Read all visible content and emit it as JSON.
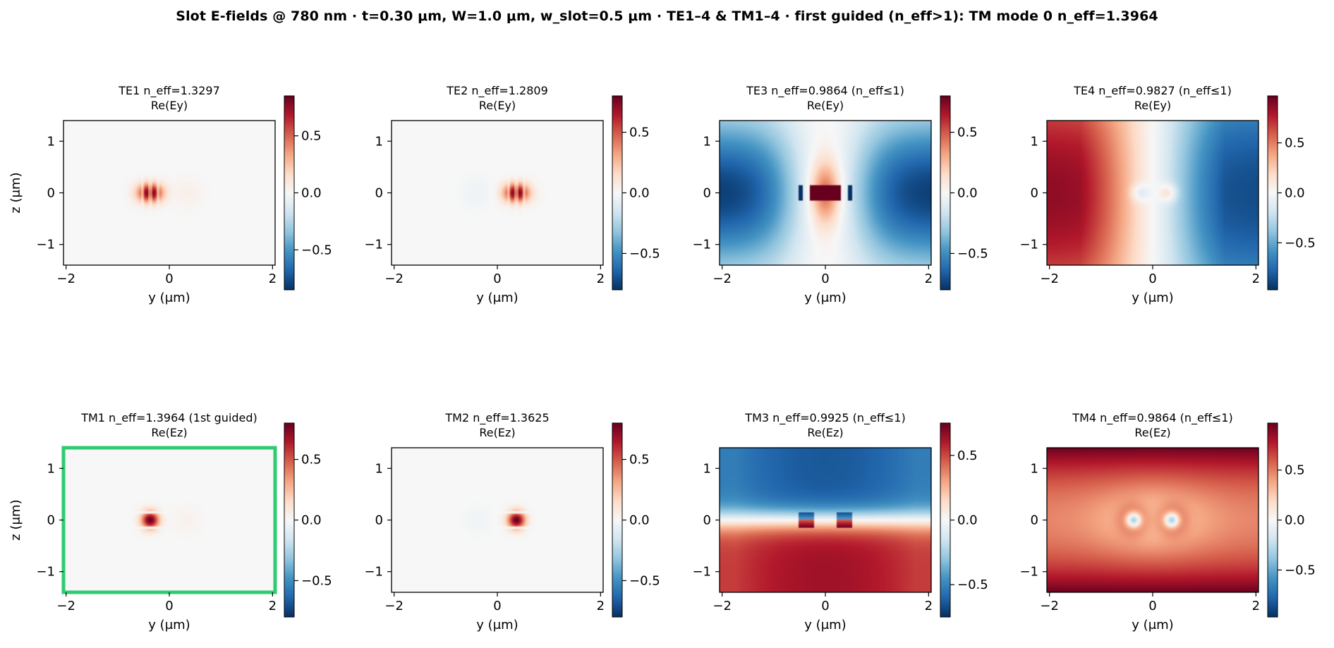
{
  "suptitle": "Slot E-fields @ 780 nm · t=0.30 μm, W=1.0 μm, w_slot=0.5 μm · TE1–4 & TM1–4  ·  first guided (n_eff>1): TM mode 0 n_eff=1.3964",
  "colors": {
    "highlight": "#2ecc71",
    "cmap": "RdBu_r",
    "cmap_stops": [
      "#053061",
      "#2166ac",
      "#4393c3",
      "#92c5de",
      "#d1e5f0",
      "#f7f7f7",
      "#fddbc7",
      "#f4a582",
      "#d6604d",
      "#b2182b",
      "#67001f"
    ]
  },
  "chart_data": [
    {
      "type": "heatmap",
      "mode": "TE1",
      "title_line1": "TE1  n_eff=1.3297",
      "title_line2": "Re(Ey)",
      "n_eff": 1.3297,
      "component": "Ey",
      "xlabel": "y (μm)",
      "ylabel": "z (μm)",
      "xlim": [
        -2.05,
        2.05
      ],
      "ylim": [
        -1.4,
        1.4
      ],
      "xticks": [
        "−2",
        "0",
        "2"
      ],
      "yticks": [
        "1",
        "0",
        "−1"
      ],
      "clim": [
        -0.85,
        0.85
      ],
      "cbar_ticks": [
        "0.5",
        "0.0",
        "−0.5"
      ],
      "cbar_values": [
        0.5,
        0,
        -0.5
      ],
      "highlight": false,
      "pattern": "te-left"
    },
    {
      "type": "heatmap",
      "mode": "TE2",
      "title_line1": "TE2  n_eff=1.2809",
      "title_line2": "Re(Ey)",
      "n_eff": 1.2809,
      "component": "Ey",
      "xlabel": "y (μm)",
      "ylabel": "",
      "xlim": [
        -2.05,
        2.05
      ],
      "ylim": [
        -1.4,
        1.4
      ],
      "xticks": [
        "−2",
        "0",
        "2"
      ],
      "yticks": [
        "1",
        "0",
        "−1"
      ],
      "clim": [
        -0.8,
        0.8
      ],
      "cbar_ticks": [
        "0.5",
        "0.0",
        "−0.5"
      ],
      "cbar_values": [
        0.5,
        0,
        -0.5
      ],
      "highlight": false,
      "pattern": "te-right"
    },
    {
      "type": "heatmap",
      "mode": "TE3",
      "title_line1": "TE3  n_eff=0.9864  (n_eff≤1)",
      "title_line2": "Re(Ey)",
      "n_eff": 0.9864,
      "component": "Ey",
      "xlabel": "y (μm)",
      "ylabel": "",
      "xlim": [
        -2.05,
        2.05
      ],
      "ylim": [
        -1.4,
        1.4
      ],
      "xticks": [
        "−2",
        "0",
        "2"
      ],
      "yticks": [
        "1",
        "0",
        "−1"
      ],
      "clim": [
        -0.8,
        0.8
      ],
      "cbar_ticks": [
        "0.5",
        "0.0",
        "−0.5"
      ],
      "cbar_values": [
        0.5,
        0,
        -0.5
      ],
      "highlight": false,
      "pattern": "te3"
    },
    {
      "type": "heatmap",
      "mode": "TE4",
      "title_line1": "TE4  n_eff=0.9827  (n_eff≤1)",
      "title_line2": "Re(Ey)",
      "n_eff": 0.9827,
      "component": "Ey",
      "xlabel": "y (μm)",
      "ylabel": "",
      "xlim": [
        -2.05,
        2.05
      ],
      "ylim": [
        -1.4,
        1.4
      ],
      "xticks": [
        "−2",
        "0",
        "2"
      ],
      "yticks": [
        "1",
        "0",
        "−1"
      ],
      "clim": [
        -0.97,
        0.97
      ],
      "cbar_ticks": [
        "0.5",
        "0.0",
        "−0.5"
      ],
      "cbar_values": [
        0.5,
        0,
        -0.5
      ],
      "highlight": false,
      "pattern": "te4"
    },
    {
      "type": "heatmap",
      "mode": "TM1",
      "title_line1": "TM1  n_eff=1.3964  (1st guided)",
      "title_line2": "Re(Ez)",
      "n_eff": 1.3964,
      "component": "Ez",
      "xlabel": "y (μm)",
      "ylabel": "z (μm)",
      "xlim": [
        -2.05,
        2.05
      ],
      "ylim": [
        -1.4,
        1.4
      ],
      "xticks": [
        "−2",
        "0",
        "2"
      ],
      "yticks": [
        "1",
        "0",
        "−1"
      ],
      "clim": [
        -0.8,
        0.8
      ],
      "cbar_ticks": [
        "0.5",
        "0.0",
        "−0.5"
      ],
      "cbar_values": [
        0.5,
        0,
        -0.5
      ],
      "highlight": true,
      "pattern": "tm-left"
    },
    {
      "type": "heatmap",
      "mode": "TM2",
      "title_line1": "TM2  n_eff=1.3625",
      "title_line2": "Re(Ez)",
      "n_eff": 1.3625,
      "component": "Ez",
      "xlabel": "y (μm)",
      "ylabel": "",
      "xlim": [
        -2.05,
        2.05
      ],
      "ylim": [
        -1.4,
        1.4
      ],
      "xticks": [
        "−2",
        "0",
        "2"
      ],
      "yticks": [
        "1",
        "0",
        "−1"
      ],
      "clim": [
        -0.8,
        0.8
      ],
      "cbar_ticks": [
        "0.5",
        "0.0",
        "−0.5"
      ],
      "cbar_values": [
        0.5,
        0,
        -0.5
      ],
      "highlight": false,
      "pattern": "tm-right"
    },
    {
      "type": "heatmap",
      "mode": "TM3",
      "title_line1": "TM3  n_eff=0.9925  (n_eff≤1)",
      "title_line2": "Re(Ez)",
      "n_eff": 0.9925,
      "component": "Ez",
      "xlabel": "y (μm)",
      "ylabel": "",
      "xlim": [
        -2.05,
        2.05
      ],
      "ylim": [
        -1.4,
        1.4
      ],
      "xticks": [
        "−2",
        "0",
        "2"
      ],
      "yticks": [
        "1",
        "0",
        "−1"
      ],
      "clim": [
        -0.75,
        0.75
      ],
      "cbar_ticks": [
        "0.5",
        "0.0",
        "−0.5"
      ],
      "cbar_values": [
        0.5,
        0,
        -0.5
      ],
      "highlight": false,
      "pattern": "tm3"
    },
    {
      "type": "heatmap",
      "mode": "TM4",
      "title_line1": "TM4  n_eff=0.9864  (n_eff≤1)",
      "title_line2": "Re(Ez)",
      "n_eff": 0.9864,
      "component": "Ez",
      "xlabel": "y (μm)",
      "ylabel": "",
      "xlim": [
        -2.05,
        2.05
      ],
      "ylim": [
        -1.4,
        1.4
      ],
      "xticks": [
        "−2",
        "0",
        "2"
      ],
      "yticks": [
        "1",
        "0",
        "−1"
      ],
      "clim": [
        -0.97,
        0.97
      ],
      "cbar_ticks": [
        "0.5",
        "0.0",
        "−0.5"
      ],
      "cbar_values": [
        0.5,
        0,
        -0.5
      ],
      "highlight": false,
      "pattern": "tm4"
    }
  ]
}
